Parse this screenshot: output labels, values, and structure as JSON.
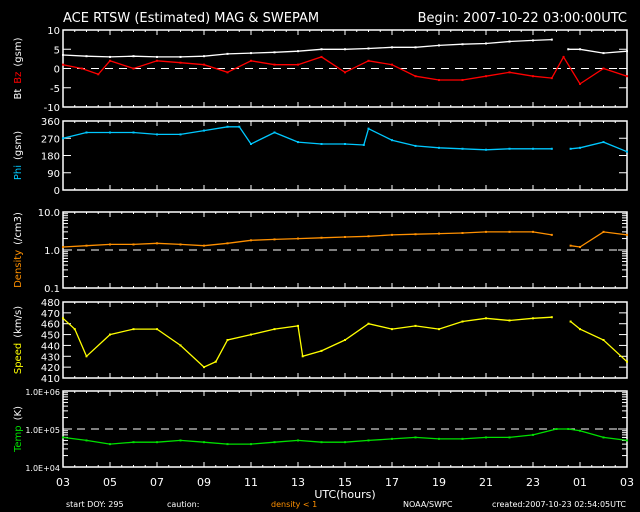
{
  "header": {
    "title": "ACE RTSW (Estimated) MAG & SWEPAM",
    "begin": "Begin: 2007-10-22 03:00:00UTC"
  },
  "footer": {
    "start_doy": "start DOY: 295",
    "caution": "caution:",
    "density_note": "density < 1",
    "org": "NOAA/SWPC",
    "created": "created:2007-10-23 02:54:05UTC"
  },
  "colors": {
    "bt": "#ffffff",
    "bz": "#ff0000",
    "phi": "#00c8ff",
    "density": "#ff9000",
    "speed": "#ffff00",
    "temp": "#00e000"
  },
  "chart_data": {
    "type": "line",
    "xlabel": "UTC(hours)",
    "x_ticks": [
      "03",
      "05",
      "07",
      "09",
      "11",
      "13",
      "15",
      "17",
      "19",
      "21",
      "23",
      "01",
      "03"
    ],
    "x_range_hours": [
      0,
      24
    ],
    "panels": [
      {
        "id": "mag",
        "ylabel_parts": [
          "Bt",
          "Bz",
          "(gsm)"
        ],
        "scale": "linear",
        "ylim": [
          -10,
          10
        ],
        "ticks": [
          "10",
          "5",
          "0",
          "-5",
          "-10"
        ],
        "tick_values": [
          10,
          5,
          0,
          -5,
          -10
        ],
        "ref_line": 0,
        "series": [
          {
            "name": "Bt",
            "color": "bt",
            "x": [
              0,
              1,
              2,
              3,
              4,
              5,
              6,
              7,
              8,
              9,
              10,
              11,
              12,
              13,
              14,
              15,
              16,
              17,
              18,
              19,
              20,
              20.8,
              21.5,
              22,
              23,
              24
            ],
            "y": [
              3.5,
              3.2,
              3,
              3.2,
              3,
              3,
              3.2,
              3.8,
              4,
              4.2,
              4.5,
              5,
              5,
              5.2,
              5.5,
              5.5,
              6,
              6.3,
              6.5,
              7,
              7.3,
              7.5,
              5,
              5,
              4,
              4.5
            ]
          },
          {
            "name": "Bz",
            "color": "bz",
            "x": [
              0,
              0.8,
              1.5,
              2,
              3,
              4,
              5,
              6,
              7,
              8,
              9,
              10,
              11,
              12,
              13,
              14,
              15,
              16,
              17,
              18,
              19,
              20,
              20.8,
              21.3,
              22,
              23,
              24
            ],
            "y": [
              1,
              0,
              -1.5,
              2,
              0,
              2,
              1.5,
              1,
              -1,
              2,
              1,
              1,
              3,
              -1,
              2,
              1,
              -2,
              -3,
              -3,
              -2,
              -1,
              -2,
              -2.5,
              3,
              -4,
              0,
              -2
            ]
          }
        ]
      },
      {
        "id": "phi",
        "ylabel_parts": [
          "Phi",
          "(gsm)"
        ],
        "scale": "linear",
        "ylim": [
          0,
          360
        ],
        "ticks": [
          "360",
          "270",
          "180",
          "90",
          "0"
        ],
        "tick_values": [
          360,
          270,
          180,
          90,
          0
        ],
        "series": [
          {
            "name": "Phi",
            "color": "phi",
            "x": [
              0,
              1,
              2,
              3,
              4,
              5,
              6,
              7,
              7.5,
              8,
              9,
              10,
              11,
              12,
              12.8,
              13,
              14,
              15,
              16,
              17,
              18,
              19,
              20,
              20.8,
              21.6,
              22,
              23,
              24
            ],
            "y": [
              270,
              300,
              300,
              300,
              290,
              290,
              310,
              330,
              330,
              240,
              300,
              250,
              240,
              240,
              235,
              320,
              260,
              230,
              220,
              215,
              210,
              215,
              215,
              215,
              215,
              220,
              250,
              200
            ]
          }
        ]
      },
      {
        "id": "density",
        "ylabel_parts": [
          "Density",
          "(/cm3)"
        ],
        "scale": "log",
        "ylim": [
          0.1,
          10
        ],
        "ticks": [
          "10.0",
          "1.0",
          "0.1"
        ],
        "tick_values": [
          10,
          1,
          0.1
        ],
        "ref_line": 1,
        "series": [
          {
            "name": "Density",
            "color": "density",
            "x": [
              0,
              1,
              2,
              3,
              4,
              5,
              6,
              7,
              8,
              9,
              10,
              11,
              12,
              13,
              14,
              15,
              16,
              17,
              18,
              19,
              20,
              20.8,
              21.6,
              22,
              23,
              24
            ],
            "y": [
              1.2,
              1.3,
              1.4,
              1.4,
              1.5,
              1.4,
              1.3,
              1.5,
              1.8,
              1.9,
              2,
              2.1,
              2.2,
              2.3,
              2.5,
              2.6,
              2.7,
              2.8,
              3,
              3,
              3,
              2.5,
              1.3,
              1.2,
              3,
              2.5
            ]
          }
        ]
      },
      {
        "id": "speed",
        "ylabel_parts": [
          "Speed",
          "(km/s)"
        ],
        "scale": "linear",
        "ylim": [
          410,
          480
        ],
        "ticks": [
          "480",
          "470",
          "460",
          "450",
          "440",
          "430",
          "420",
          "410"
        ],
        "tick_values": [
          480,
          470,
          460,
          450,
          440,
          430,
          420,
          410
        ],
        "series": [
          {
            "name": "Speed",
            "color": "speed",
            "x": [
              0,
              0.5,
              1,
              2,
              3,
              4,
              5,
              6,
              6.5,
              7,
              8,
              9,
              10,
              10.2,
              11,
              12,
              13,
              14,
              15,
              16,
              17,
              18,
              19,
              20,
              20.8,
              21.6,
              22,
              23,
              24
            ],
            "y": [
              465,
              455,
              430,
              450,
              455,
              455,
              440,
              420,
              425,
              445,
              450,
              455,
              458,
              430,
              435,
              445,
              460,
              455,
              458,
              455,
              462,
              465,
              463,
              465,
              466,
              462,
              455,
              445,
              425
            ]
          }
        ]
      },
      {
        "id": "temp",
        "ylabel_parts": [
          "Temp",
          "(K)"
        ],
        "scale": "log",
        "ylim": [
          10000,
          1000000
        ],
        "ticks": [
          "1.0E+06",
          "1.0E+05",
          "1.0E+04"
        ],
        "tick_values": [
          1000000,
          100000,
          10000
        ],
        "ref_line": 100000,
        "series": [
          {
            "name": "Temp",
            "color": "temp",
            "x": [
              0,
              1,
              2,
              3,
              4,
              5,
              6,
              7,
              8,
              9,
              10,
              11,
              12,
              13,
              14,
              15,
              16,
              17,
              18,
              19,
              20,
              21,
              21.5,
              22,
              23,
              24
            ],
            "y": [
              60000,
              50000,
              40000,
              45000,
              45000,
              50000,
              45000,
              40000,
              40000,
              45000,
              50000,
              45000,
              45000,
              50000,
              55000,
              60000,
              55000,
              55000,
              60000,
              60000,
              70000,
              100000,
              100000,
              90000,
              60000,
              50000
            ]
          }
        ]
      }
    ]
  }
}
